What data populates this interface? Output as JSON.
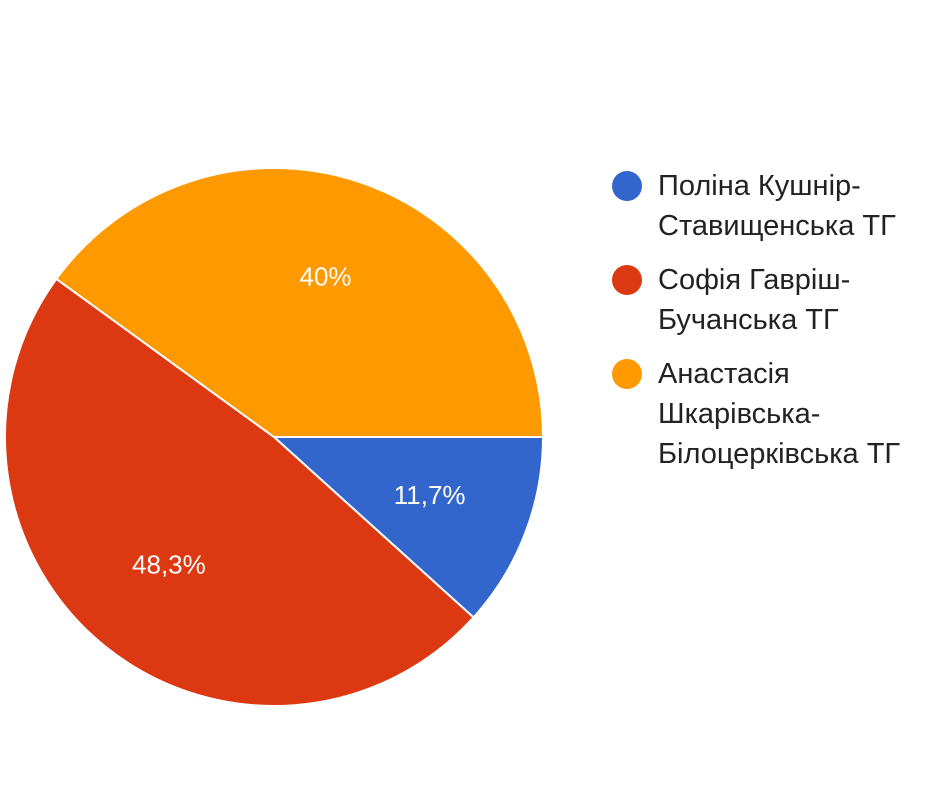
{
  "chart_data": {
    "type": "pie",
    "start_angle_deg": 0,
    "direction": "clockwise",
    "slices": [
      {
        "label": "Поліна Кушнір-\nСтавищенська ТГ",
        "value": 11.7,
        "display": "11,7%",
        "color": "#3366cc"
      },
      {
        "label": "Софія Гавріш-\nБучанська ТГ",
        "value": 48.3,
        "display": "48,3%",
        "color": "#dc3912"
      },
      {
        "label": "Анастасія\nШкарівська-\nБілоцерківська ТГ",
        "value": 40,
        "display": "40%",
        "color": "#ff9900"
      }
    ],
    "legend_position": "right"
  }
}
